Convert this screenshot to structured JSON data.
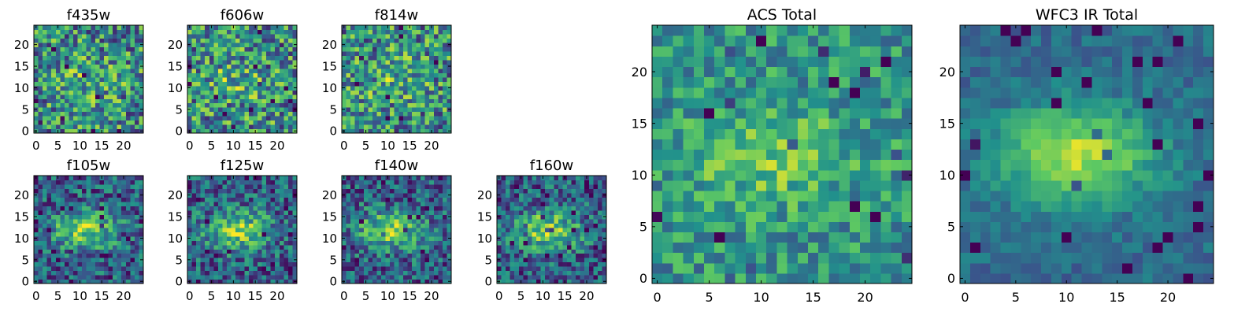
{
  "figure": {
    "colormap": "viridis",
    "colormap_stops": [
      "#440154",
      "#3b528b",
      "#21918c",
      "#5ec962",
      "#fde725"
    ]
  },
  "chart_data": [
    {
      "type": "heatmap",
      "title": "f435w",
      "grid_size": 25,
      "xticks": [
        0,
        5,
        10,
        15,
        20
      ],
      "yticks": [
        0,
        5,
        10,
        15,
        20
      ],
      "xlim": [
        -0.5,
        24.5
      ],
      "ylim": [
        -0.5,
        24.5
      ],
      "grid": false
    },
    {
      "type": "heatmap",
      "title": "f606w",
      "grid_size": 25,
      "xticks": [
        0,
        5,
        10,
        15,
        20
      ],
      "yticks": [
        0,
        5,
        10,
        15,
        20
      ],
      "xlim": [
        -0.5,
        24.5
      ],
      "ylim": [
        -0.5,
        24.5
      ],
      "grid": false
    },
    {
      "type": "heatmap",
      "title": "f814w",
      "grid_size": 25,
      "xticks": [
        0,
        5,
        10,
        15,
        20
      ],
      "yticks": [
        0,
        5,
        10,
        15,
        20
      ],
      "xlim": [
        -0.5,
        24.5
      ],
      "ylim": [
        -0.5,
        24.5
      ],
      "grid": false
    },
    {
      "type": "heatmap",
      "title": "f105w",
      "grid_size": 25,
      "xticks": [
        0,
        5,
        10,
        15,
        20
      ],
      "yticks": [
        0,
        5,
        10,
        15,
        20
      ],
      "xlim": [
        -0.5,
        24.5
      ],
      "ylim": [
        -0.5,
        24.5
      ],
      "grid": false
    },
    {
      "type": "heatmap",
      "title": "f125w",
      "grid_size": 25,
      "xticks": [
        0,
        5,
        10,
        15,
        20
      ],
      "yticks": [
        0,
        5,
        10,
        15,
        20
      ],
      "xlim": [
        -0.5,
        24.5
      ],
      "ylim": [
        -0.5,
        24.5
      ],
      "grid": false
    },
    {
      "type": "heatmap",
      "title": "f140w",
      "grid_size": 25,
      "xticks": [
        0,
        5,
        10,
        15,
        20
      ],
      "yticks": [
        0,
        5,
        10,
        15,
        20
      ],
      "xlim": [
        -0.5,
        24.5
      ],
      "ylim": [
        -0.5,
        24.5
      ],
      "grid": false
    },
    {
      "type": "heatmap",
      "title": "f160w",
      "grid_size": 25,
      "xticks": [
        0,
        5,
        10,
        15,
        20
      ],
      "yticks": [
        0,
        5,
        10,
        15,
        20
      ],
      "xlim": [
        -0.5,
        24.5
      ],
      "ylim": [
        -0.5,
        24.5
      ],
      "grid": false
    },
    {
      "type": "heatmap",
      "title": "ACS Total",
      "grid_size": 25,
      "xticks": [
        0,
        5,
        10,
        15,
        20
      ],
      "yticks": [
        0,
        5,
        10,
        15,
        20
      ],
      "xlim": [
        -0.5,
        24.5
      ],
      "ylim": [
        -0.5,
        24.5
      ],
      "grid": false
    },
    {
      "type": "heatmap",
      "title": "WFC3 IR Total",
      "grid_size": 25,
      "xticks": [
        0,
        5,
        10,
        15,
        20
      ],
      "yticks": [
        0,
        5,
        10,
        15,
        20
      ],
      "xlim": [
        -0.5,
        24.5
      ],
      "ylim": [
        -0.5,
        24.5
      ],
      "grid": false
    }
  ]
}
